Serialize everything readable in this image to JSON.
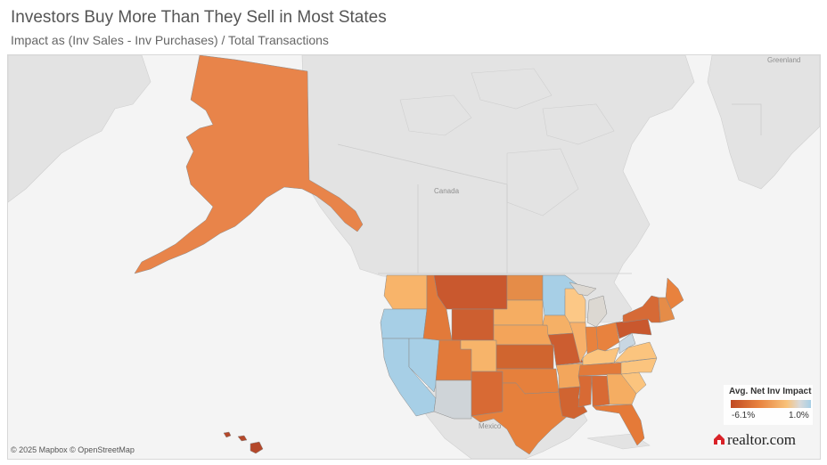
{
  "header": {
    "title": "Investors Buy More Than They Sell in Most States",
    "subtitle": "Impact as (Inv Sales - Inv Purchases) / Total Transactions"
  },
  "map": {
    "labels": {
      "greenland": "Greenland",
      "canada": "Canada",
      "mexico": "Mexico"
    },
    "attribution": "© 2025 Mapbox © OpenStreetMap",
    "land_color": "#e3e3e3",
    "water_color": "#f4f4f4"
  },
  "legend": {
    "title": "Avg. Net Inv Impact",
    "min_label": "-6.1%",
    "max_label": "1.0%",
    "min_value": -6.1,
    "max_value": 1.0,
    "colors": [
      "#c04a23",
      "#e8823e",
      "#f8c27a",
      "#d9d9d9",
      "#a7cfe6"
    ]
  },
  "logo": {
    "text": "realtor.com",
    "icon": "house-icon",
    "color": "#d92228"
  },
  "regions": [
    {
      "name": "Alaska",
      "color": "#e8844a"
    },
    {
      "name": "Hawaii",
      "color": "#b4482a"
    },
    {
      "name": "Washington",
      "color": "#f8b46a"
    },
    {
      "name": "Oregon",
      "color": "#a7cfe6"
    },
    {
      "name": "California",
      "color": "#a7cfe6"
    },
    {
      "name": "Nevada",
      "color": "#a7cfe6"
    },
    {
      "name": "Idaho",
      "color": "#e27a3a"
    },
    {
      "name": "Montana",
      "color": "#c9582e"
    },
    {
      "name": "Wyoming",
      "color": "#cd5f30"
    },
    {
      "name": "Utah",
      "color": "#e27a3a"
    },
    {
      "name": "Arizona",
      "color": "#cfd4d8"
    },
    {
      "name": "Colorado",
      "color": "#f7b46a"
    },
    {
      "name": "New Mexico",
      "color": "#d86a34"
    },
    {
      "name": "North Dakota",
      "color": "#e58c48"
    },
    {
      "name": "South Dakota",
      "color": "#f5ad62"
    },
    {
      "name": "Nebraska",
      "color": "#f3a45a"
    },
    {
      "name": "Kansas",
      "color": "#d0652f"
    },
    {
      "name": "Oklahoma",
      "color": "#e6803c"
    },
    {
      "name": "Texas",
      "color": "#e6803c"
    },
    {
      "name": "Minnesota",
      "color": "#a7cfe6"
    },
    {
      "name": "Iowa",
      "color": "#f5b066"
    },
    {
      "name": "Missouri",
      "color": "#cc5d30"
    },
    {
      "name": "Arkansas",
      "color": "#f3a65c"
    },
    {
      "name": "Louisiana",
      "color": "#d06431"
    },
    {
      "name": "Wisconsin",
      "color": "#fcc886"
    },
    {
      "name": "Illinois",
      "color": "#f7b06a"
    },
    {
      "name": "Michigan",
      "color": "#dcd8d2"
    },
    {
      "name": "Indiana",
      "color": "#e8823e"
    },
    {
      "name": "Ohio",
      "color": "#e8823e"
    },
    {
      "name": "Kentucky",
      "color": "#fbc47e"
    },
    {
      "name": "Tennessee",
      "color": "#e27a3a"
    },
    {
      "name": "Mississippi",
      "color": "#d86a34"
    },
    {
      "name": "Alabama",
      "color": "#d86a34"
    },
    {
      "name": "Georgia",
      "color": "#f5ad62"
    },
    {
      "name": "Florida",
      "color": "#e57a38"
    },
    {
      "name": "South Carolina",
      "color": "#fbc47e"
    },
    {
      "name": "North Carolina",
      "color": "#fbc47e"
    },
    {
      "name": "Virginia",
      "color": "#fbc47e"
    },
    {
      "name": "West Virginia",
      "color": "#c9d7e2"
    },
    {
      "name": "Pennsylvania",
      "color": "#c9582e"
    },
    {
      "name": "New York",
      "color": "#d66a36"
    },
    {
      "name": "Maine",
      "color": "#e8823e"
    },
    {
      "name": "New England",
      "color": "#e58c48"
    }
  ]
}
